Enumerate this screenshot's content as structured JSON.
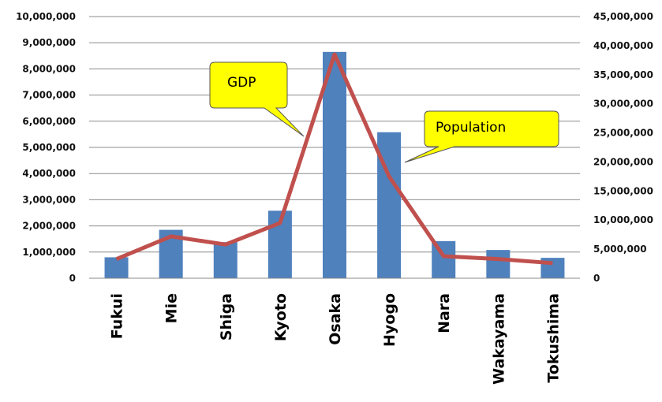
{
  "chart_data": {
    "type": "bar+line",
    "categories": [
      "Fukui",
      "Mie",
      "Shiga",
      "Kyoto",
      "Osaka",
      "Hyogo",
      "Nara",
      "Wakayama",
      "Tokushima"
    ],
    "series": [
      {
        "values": [
          800000,
          1850000,
          1380000,
          2580000,
          8650000,
          5580000,
          1420000,
          1080000,
          780000
        ],
        "type": "bar",
        "axis": "left",
        "color": "#4F81BD"
      },
      {
        "values": [
          3300000,
          7200000,
          5800000,
          9500000,
          38500000,
          17500000,
          3800000,
          3300000,
          2600000
        ],
        "type": "line",
        "axis": "right",
        "color": "#C0504D"
      }
    ],
    "y_left": {
      "min": 0,
      "max": 10000000,
      "step": 1000000,
      "tick_labels": [
        "0",
        "1,000,000",
        "2,000,000",
        "3,000,000",
        "4,000,000",
        "5,000,000",
        "6,000,000",
        "7,000,000",
        "8,000,000",
        "9,000,000",
        "10,000,000"
      ]
    },
    "y_right": {
      "min": 0,
      "max": 45000000,
      "step": 5000000,
      "tick_labels": [
        "0",
        "5,000,000",
        "10,000,000",
        "15,000,000",
        "20,000,000",
        "25,000,000",
        "30,000,000",
        "35,000,000",
        "40,000,000",
        "45,000,000"
      ]
    },
    "grid": true,
    "annotations": [
      {
        "text": "GDP",
        "points_to": "Kyoto-Osaka line segment"
      },
      {
        "text": "Population",
        "points_to": "Hyogo bar"
      }
    ],
    "title": "",
    "xlabel": "",
    "ylabel": ""
  }
}
